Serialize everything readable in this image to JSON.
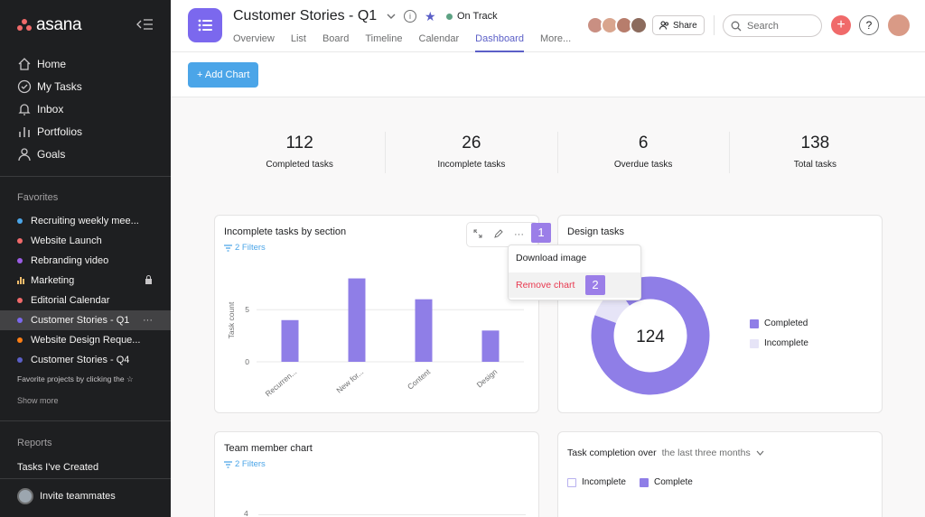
{
  "sidebar": {
    "logo_text": "asana",
    "nav": [
      {
        "label": "Home",
        "icon": "home-icon"
      },
      {
        "label": "My Tasks",
        "icon": "check-circle-icon"
      },
      {
        "label": "Inbox",
        "icon": "bell-icon"
      },
      {
        "label": "Portfolios",
        "icon": "bar-chart-icon"
      },
      {
        "label": "Goals",
        "icon": "person-icon"
      }
    ],
    "favorites_title": "Favorites",
    "favorites": [
      {
        "label": "Recruiting weekly mee...",
        "color": "#4ba5e8"
      },
      {
        "label": "Website Launch",
        "color": "#f06a6a"
      },
      {
        "label": "Rebranding video",
        "color": "#9b5de5"
      },
      {
        "label": "Marketing",
        "color": "#f1bd6c",
        "extra": "🔒"
      },
      {
        "label": "Editorial Calendar",
        "color": "#f06a6a"
      },
      {
        "label": "Customer Stories - Q1",
        "color": "#7b68ee",
        "extra": "···"
      },
      {
        "label": "Website Design Reque...",
        "color": "#fd7e14"
      },
      {
        "label": "Customer Stories - Q4",
        "color": "#5b5fc7"
      }
    ],
    "hint": "Favorite projects by clicking the ☆",
    "show_more": "Show more",
    "reports_title": "Reports",
    "report_item": "Tasks I've Created",
    "invite": "Invite teammates"
  },
  "header": {
    "title": "Customer Stories - Q1",
    "status": "On Track",
    "tabs": [
      "Overview",
      "List",
      "Board",
      "Timeline",
      "Calendar",
      "Dashboard",
      "More..."
    ],
    "share": "Share",
    "search_placeholder": "Search",
    "help": "?"
  },
  "toolbar": {
    "add_chart": "+ Add Chart"
  },
  "stats": [
    {
      "value": "112",
      "label": "Completed tasks"
    },
    {
      "value": "26",
      "label": "Incomplete tasks"
    },
    {
      "value": "6",
      "label": "Overdue tasks"
    },
    {
      "value": "138",
      "label": "Total tasks"
    }
  ],
  "bar_card": {
    "title": "Incomplete tasks by section",
    "filters": "2 Filters",
    "badge": "1",
    "menu": {
      "download": "Download image",
      "remove": "Remove chart",
      "badge": "2"
    }
  },
  "donut_card": {
    "title": "Design tasks",
    "center": "124",
    "legend": [
      "Completed",
      "Incomplete"
    ]
  },
  "team_card": {
    "title": "Team member chart",
    "filters": "2 Filters",
    "tick": "4"
  },
  "completion_card": {
    "title": "Task completion over",
    "range": "the last three months",
    "legend": [
      "Incomplete",
      "Complete"
    ]
  },
  "chart_data": [
    {
      "type": "bar",
      "title": "Incomplete tasks by section",
      "ylabel": "Task count",
      "categories": [
        "Recurren...",
        "New for...",
        "Content",
        "Design"
      ],
      "values": [
        4,
        8,
        6,
        3
      ],
      "yticks": [
        0,
        5
      ],
      "ylim": [
        0,
        9
      ],
      "colors": {
        "bar": "#8f7ee7"
      }
    },
    {
      "type": "pie",
      "title": "Design tasks",
      "labels": [
        "Completed",
        "Incomplete"
      ],
      "values": [
        112,
        12
      ],
      "colors": {
        "completed": "#8f7ee7",
        "incomplete": "#e6e4f7"
      }
    }
  ]
}
